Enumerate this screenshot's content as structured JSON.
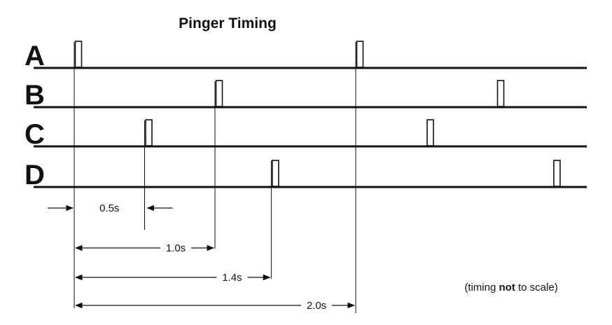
{
  "title": "Pinger Timing",
  "channels": [
    {
      "label": "A",
      "pulses": [
        0.0,
        2.0
      ]
    },
    {
      "label": "B",
      "pulses": [
        1.0,
        3.0
      ]
    },
    {
      "label": "C",
      "pulses": [
        0.5,
        2.5
      ]
    },
    {
      "label": "D",
      "pulses": [
        1.4,
        3.4
      ]
    }
  ],
  "measurements": [
    {
      "label": "0.5s",
      "to": 0.5,
      "style": "outside"
    },
    {
      "label": "1.0s",
      "to": 1.0,
      "style": "inside"
    },
    {
      "label": "1.4s",
      "to": 1.4,
      "style": "inside"
    },
    {
      "label": "2.0s",
      "to": 2.0,
      "style": "inside"
    }
  ],
  "note": {
    "prefix": "(timing ",
    "emphasis": "not",
    "suffix": " to scale)"
  }
}
